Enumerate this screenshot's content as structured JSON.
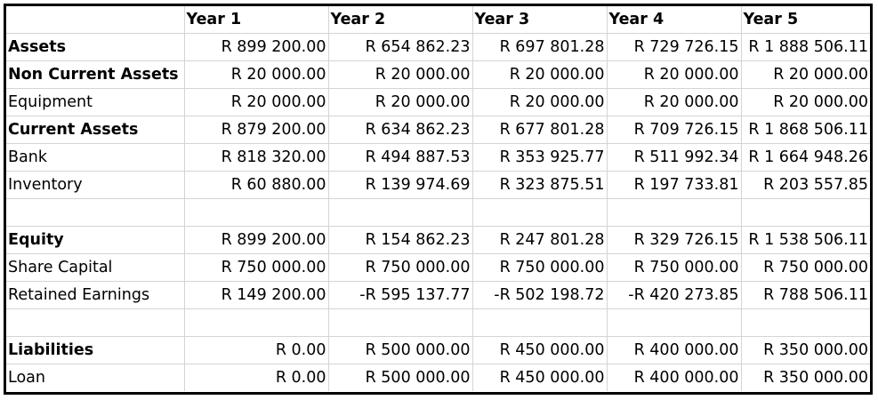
{
  "table": {
    "headers": [
      "",
      "Year 1",
      "Year 2",
      "Year 3",
      "Year 4",
      "Year 5"
    ],
    "rows": [
      {
        "label": "Assets",
        "bold": true,
        "values": [
          "R 899 200.00",
          "R 654 862.23",
          "R 697 801.28",
          "R 729 726.15",
          "R 1 888 506.11"
        ]
      },
      {
        "label": "Non Current Assets",
        "bold": true,
        "values": [
          "R 20 000.00",
          "R 20 000.00",
          "R 20 000.00",
          "R 20 000.00",
          "R 20 000.00"
        ]
      },
      {
        "label": "Equipment",
        "bold": false,
        "values": [
          "R 20 000.00",
          "R 20 000.00",
          "R 20 000.00",
          "R 20 000.00",
          "R 20 000.00"
        ]
      },
      {
        "label": "Current Assets",
        "bold": true,
        "values": [
          "R 879 200.00",
          "R 634 862.23",
          "R 677 801.28",
          "R 709 726.15",
          "R 1 868 506.11"
        ]
      },
      {
        "label": "Bank",
        "bold": false,
        "values": [
          "R 818 320.00",
          "R 494 887.53",
          "R 353 925.77",
          "R 511 992.34",
          "R 1 664 948.26"
        ]
      },
      {
        "label": "Inventory",
        "bold": false,
        "values": [
          "R 60 880.00",
          "R 139 974.69",
          "R 323 875.51",
          "R 197 733.81",
          "R 203 557.85"
        ]
      },
      {
        "label": "",
        "bold": false,
        "values": [
          "",
          "",
          "",
          "",
          ""
        ]
      },
      {
        "label": "Equity",
        "bold": true,
        "values": [
          "R 899 200.00",
          "R 154 862.23",
          "R 247 801.28",
          "R 329 726.15",
          "R 1 538 506.11"
        ]
      },
      {
        "label": "Share Capital",
        "bold": false,
        "values": [
          "R 750 000.00",
          "R 750 000.00",
          "R 750 000.00",
          "R 750 000.00",
          "R 750 000.00"
        ]
      },
      {
        "label": "Retained Earnings",
        "bold": false,
        "values": [
          "R 149 200.00",
          "-R 595 137.77",
          "-R 502 198.72",
          "-R 420 273.85",
          "R 788 506.11"
        ]
      },
      {
        "label": "",
        "bold": false,
        "values": [
          "",
          "",
          "",
          "",
          ""
        ]
      },
      {
        "label": "Liabilities",
        "bold": true,
        "values": [
          "R 0.00",
          "R 500 000.00",
          "R 450 000.00",
          "R 400 000.00",
          "R 350 000.00"
        ]
      },
      {
        "label": "Loan",
        "bold": false,
        "values": [
          "R 0.00",
          "R 500 000.00",
          "R 450 000.00",
          "R 400 000.00",
          "R 350 000.00"
        ]
      }
    ]
  }
}
